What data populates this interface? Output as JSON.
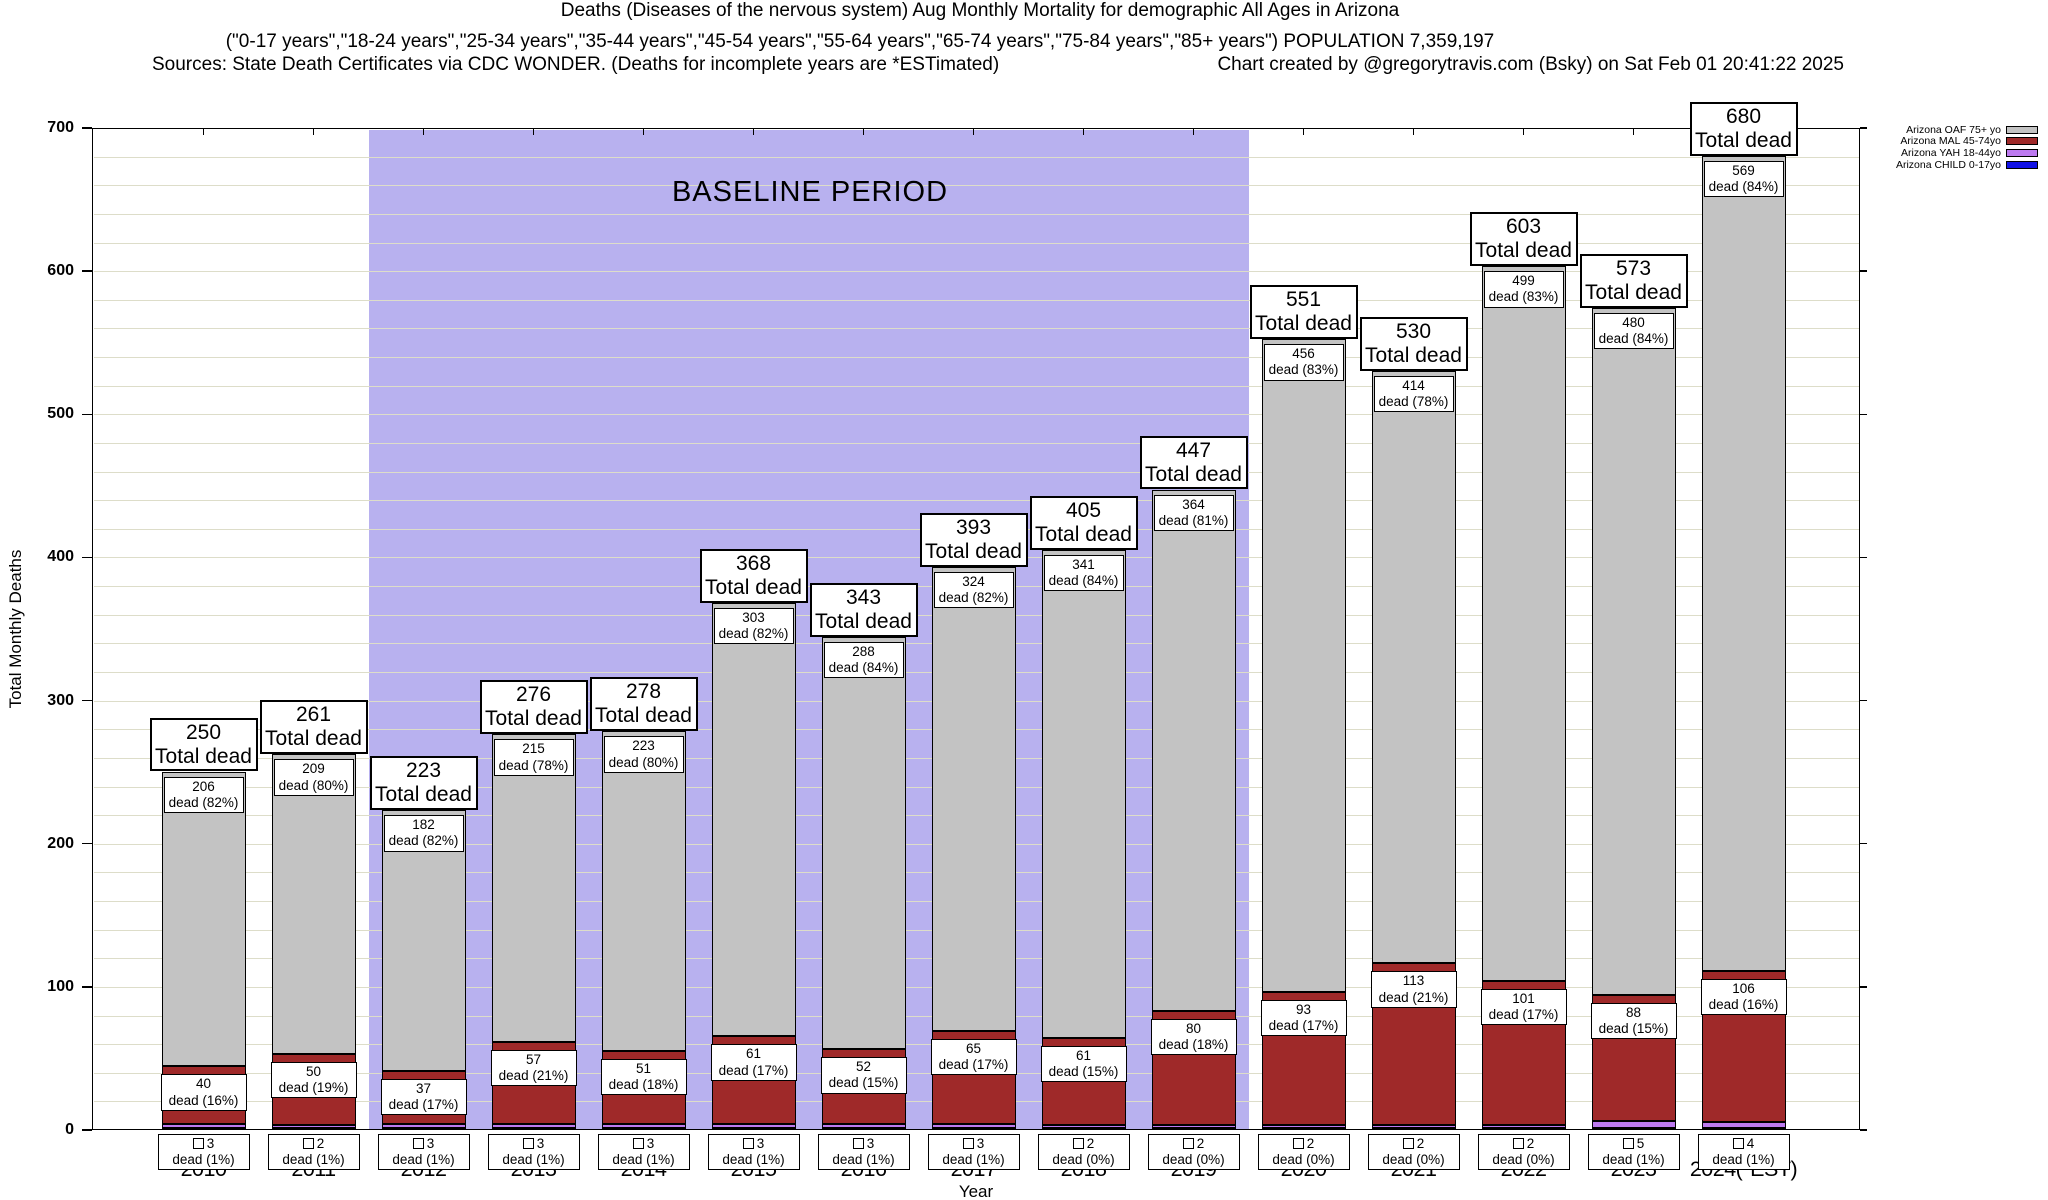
{
  "title": {
    "line1": "Deaths (Diseases of the nervous system) Aug Monthly Mortality for demographic All Ages in Arizona",
    "line2": "(\"0-17 years\",\"18-24 years\",\"25-34 years\",\"35-44 years\",\"45-54 years\",\"55-64 years\",\"65-74 years\",\"75-84 years\",\"85+ years\") POPULATION 7,359,197",
    "line3_left": "Sources: State Death Certificates via CDC WONDER. (Deaths for incomplete years are *ESTimated)",
    "line3_right": "Chart created by @gregorytravis.com (Bsky) on Sat Feb 01 20:41:22 2025"
  },
  "axes": {
    "y_label": "Total Monthly Deaths",
    "x_label": "Year",
    "y_ticks": [
      0,
      100,
      200,
      300,
      400,
      500,
      600,
      700
    ],
    "y_minor_step": 20
  },
  "strings": {
    "total_dead": "Total dead"
  },
  "baseline": {
    "label": "BASELINE PERIOD"
  },
  "legend": {
    "items": [
      {
        "label": "Arizona OAF 75+ yo",
        "color": "#c3c3c3"
      },
      {
        "label": "Arizona MAL 45-74yo",
        "color": "#9f2929"
      },
      {
        "label": "Arizona YAH 18-44yo",
        "color": "#bd7af0"
      },
      {
        "label": "Arizona CHILD 0-17yo",
        "color": "#1212e6"
      }
    ]
  },
  "chart_data": {
    "type": "bar",
    "subtype": "stacked",
    "title": "Deaths (Diseases of the nervous system) Aug Monthly Mortality for demographic All Ages in Arizona",
    "xlabel": "Year",
    "ylabel": "Total Monthly Deaths",
    "ylim": [
      0,
      700
    ],
    "grid": true,
    "legend_position": "top-right",
    "categories": [
      "2010",
      "2011",
      "2012",
      "2013",
      "2014",
      "2015",
      "2016",
      "2017",
      "2018",
      "2019",
      "2020",
      "2021",
      "2022",
      "2023",
      "2024(*EST)"
    ],
    "totals": [
      250,
      261,
      223,
      276,
      278,
      368,
      343,
      393,
      405,
      447,
      551,
      530,
      603,
      573,
      680
    ],
    "baseline_band": {
      "from_index": 2,
      "to_index": 9,
      "label": "BASELINE PERIOD",
      "color": "#b8b1ef"
    },
    "series": [
      {
        "name": "Arizona OAF 75+ yo",
        "color": "#c3c3c3",
        "values": [
          206,
          209,
          182,
          215,
          223,
          303,
          288,
          324,
          341,
          364,
          456,
          414,
          499,
          480,
          569
        ],
        "dead_labels": [
          "dead (82%)",
          "dead (80%)",
          "dead (82%)",
          "dead (78%)",
          "dead (80%)",
          "dead (82%)",
          "dead (84%)",
          "dead (82%)",
          "dead (84%)",
          "dead (81%)",
          "dead (83%)",
          "dead (78%)",
          "dead (83%)",
          "dead (84%)",
          "dead (84%)"
        ]
      },
      {
        "name": "Arizona MAL 45-74yo",
        "color": "#9f2929",
        "values": [
          40,
          50,
          37,
          57,
          51,
          61,
          52,
          65,
          61,
          80,
          93,
          113,
          101,
          88,
          106
        ],
        "dead_labels": [
          "dead (16%)",
          "dead (19%)",
          "dead (17%)",
          "dead (21%)",
          "dead (18%)",
          "dead (17%)",
          "dead (15%)",
          "dead (17%)",
          "dead (15%)",
          "dead (18%)",
          "dead (17%)",
          "dead (21%)",
          "dead (17%)",
          "dead (15%)",
          "dead (16%)"
        ]
      },
      {
        "name": "Arizona YAH 18-44yo",
        "color": "#bd7af0",
        "values": [
          3,
          2,
          3,
          3,
          3,
          3,
          3,
          3,
          2,
          2,
          2,
          2,
          2,
          5,
          4
        ],
        "dead_labels": [
          "dead (1%)",
          "dead (1%)",
          "dead (1%)",
          "dead (1%)",
          "dead (1%)",
          "dead (1%)",
          "dead (1%)",
          "dead (1%)",
          "dead (0%)",
          "dead (0%)",
          "dead (0%)",
          "dead (0%)",
          "dead (0%)",
          "dead (1%)",
          "dead (1%)"
        ]
      },
      {
        "name": "Arizona CHILD 0-17yo",
        "color": "#1212e6",
        "values": [
          1,
          0,
          1,
          1,
          1,
          1,
          0,
          1,
          1,
          1,
          0,
          1,
          1,
          0,
          1
        ]
      }
    ]
  }
}
